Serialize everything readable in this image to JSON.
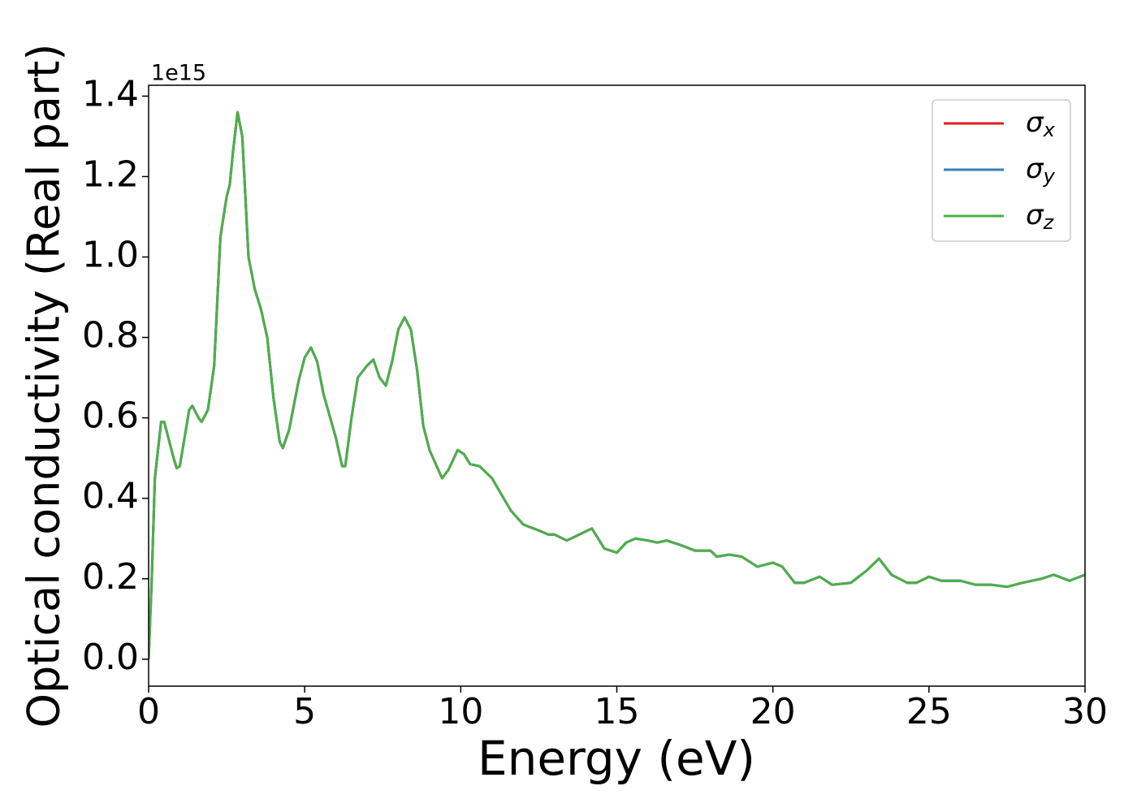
{
  "chart_data": {
    "type": "line",
    "xlabel": "Energy (eV)",
    "ylabel": "Optical conductivity (Real part)",
    "offset_label": "1e15",
    "x": [
      0,
      0.1,
      0.2,
      0.4,
      0.5,
      0.8,
      0.9,
      1.0,
      1.3,
      1.4,
      1.6,
      1.7,
      1.9,
      2.1,
      2.3,
      2.5,
      2.6,
      2.7,
      2.85,
      3.0,
      3.2,
      3.4,
      3.6,
      3.8,
      4.0,
      4.2,
      4.3,
      4.5,
      4.8,
      5.0,
      5.2,
      5.4,
      5.6,
      6.0,
      6.2,
      6.3,
      6.5,
      6.7,
      7.0,
      7.2,
      7.4,
      7.6,
      7.8,
      8.0,
      8.2,
      8.4,
      8.6,
      8.8,
      9.0,
      9.4,
      9.6,
      9.9,
      10.1,
      10.3,
      10.6,
      11.0,
      11.3,
      11.6,
      12.0,
      12.5,
      12.8,
      13.0,
      13.4,
      13.8,
      14.2,
      14.4,
      14.6,
      15.0,
      15.3,
      15.6,
      16.0,
      16.3,
      16.6,
      17.0,
      17.5,
      18.0,
      18.2,
      18.6,
      19.0,
      19.5,
      20.0,
      20.3,
      20.7,
      21.0,
      21.5,
      21.9,
      22.5,
      23.0,
      23.4,
      23.8,
      24.3,
      24.6,
      25.0,
      25.4,
      26.0,
      26.5,
      27.0,
      27.5,
      28.0,
      28.6,
      29.0,
      29.5,
      30.0
    ],
    "series": [
      {
        "name": "σx",
        "color": "#e41a1c",
        "values": [
          0.0,
          0.2,
          0.45,
          0.59,
          0.59,
          0.5,
          0.475,
          0.48,
          0.62,
          0.63,
          0.6,
          0.59,
          0.62,
          0.73,
          1.05,
          1.15,
          1.18,
          1.26,
          1.36,
          1.3,
          1.0,
          0.92,
          0.87,
          0.8,
          0.65,
          0.54,
          0.525,
          0.57,
          0.69,
          0.75,
          0.775,
          0.74,
          0.66,
          0.55,
          0.48,
          0.48,
          0.6,
          0.7,
          0.73,
          0.745,
          0.7,
          0.68,
          0.74,
          0.82,
          0.85,
          0.82,
          0.72,
          0.58,
          0.52,
          0.45,
          0.47,
          0.52,
          0.51,
          0.485,
          0.48,
          0.45,
          0.41,
          0.37,
          0.335,
          0.32,
          0.31,
          0.31,
          0.295,
          0.31,
          0.325,
          0.3,
          0.275,
          0.265,
          0.29,
          0.3,
          0.295,
          0.29,
          0.295,
          0.285,
          0.27,
          0.27,
          0.255,
          0.26,
          0.255,
          0.23,
          0.24,
          0.23,
          0.19,
          0.19,
          0.205,
          0.185,
          0.19,
          0.22,
          0.25,
          0.21,
          0.19,
          0.19,
          0.205,
          0.195,
          0.195,
          0.185,
          0.185,
          0.18,
          0.19,
          0.2,
          0.21,
          0.195,
          0.21
        ]
      },
      {
        "name": "σy",
        "color": "#377eb8",
        "values": [
          0.0,
          0.2,
          0.45,
          0.59,
          0.59,
          0.5,
          0.475,
          0.48,
          0.62,
          0.63,
          0.6,
          0.59,
          0.62,
          0.73,
          1.05,
          1.15,
          1.18,
          1.26,
          1.36,
          1.3,
          1.0,
          0.92,
          0.87,
          0.8,
          0.65,
          0.54,
          0.525,
          0.57,
          0.69,
          0.75,
          0.775,
          0.74,
          0.66,
          0.55,
          0.48,
          0.48,
          0.6,
          0.7,
          0.73,
          0.745,
          0.7,
          0.68,
          0.74,
          0.82,
          0.85,
          0.82,
          0.72,
          0.58,
          0.52,
          0.45,
          0.47,
          0.52,
          0.51,
          0.485,
          0.48,
          0.45,
          0.41,
          0.37,
          0.335,
          0.32,
          0.31,
          0.31,
          0.295,
          0.31,
          0.325,
          0.3,
          0.275,
          0.265,
          0.29,
          0.3,
          0.295,
          0.29,
          0.295,
          0.285,
          0.27,
          0.27,
          0.255,
          0.26,
          0.255,
          0.23,
          0.24,
          0.23,
          0.19,
          0.19,
          0.205,
          0.185,
          0.19,
          0.22,
          0.25,
          0.21,
          0.19,
          0.19,
          0.205,
          0.195,
          0.195,
          0.185,
          0.185,
          0.18,
          0.19,
          0.2,
          0.21,
          0.195,
          0.21
        ]
      },
      {
        "name": "σz",
        "color": "#4daf4a",
        "values": [
          0.0,
          0.2,
          0.45,
          0.59,
          0.59,
          0.5,
          0.475,
          0.48,
          0.62,
          0.63,
          0.6,
          0.59,
          0.62,
          0.73,
          1.05,
          1.15,
          1.18,
          1.26,
          1.36,
          1.3,
          1.0,
          0.92,
          0.87,
          0.8,
          0.65,
          0.54,
          0.525,
          0.57,
          0.69,
          0.75,
          0.775,
          0.74,
          0.66,
          0.55,
          0.48,
          0.48,
          0.6,
          0.7,
          0.73,
          0.745,
          0.7,
          0.68,
          0.74,
          0.82,
          0.85,
          0.82,
          0.72,
          0.58,
          0.52,
          0.45,
          0.47,
          0.52,
          0.51,
          0.485,
          0.48,
          0.45,
          0.41,
          0.37,
          0.335,
          0.32,
          0.31,
          0.31,
          0.295,
          0.31,
          0.325,
          0.3,
          0.275,
          0.265,
          0.29,
          0.3,
          0.295,
          0.29,
          0.295,
          0.285,
          0.27,
          0.27,
          0.255,
          0.26,
          0.255,
          0.23,
          0.24,
          0.23,
          0.19,
          0.19,
          0.205,
          0.185,
          0.19,
          0.22,
          0.25,
          0.21,
          0.19,
          0.19,
          0.205,
          0.195,
          0.195,
          0.185,
          0.185,
          0.18,
          0.19,
          0.2,
          0.21,
          0.195,
          0.21
        ]
      }
    ],
    "xlim": [
      0,
      30
    ],
    "xticks": [
      0,
      5,
      10,
      15,
      20,
      25,
      30
    ],
    "ylim": [
      -0.067,
      1.427
    ],
    "yticks": [
      {
        "value": 0,
        "label": "0.0"
      },
      0.2,
      0.4,
      0.6,
      0.8,
      {
        "value": 1,
        "label": "1.0"
      },
      1.2,
      1.4
    ],
    "legend": "upper right",
    "grid": false
  }
}
